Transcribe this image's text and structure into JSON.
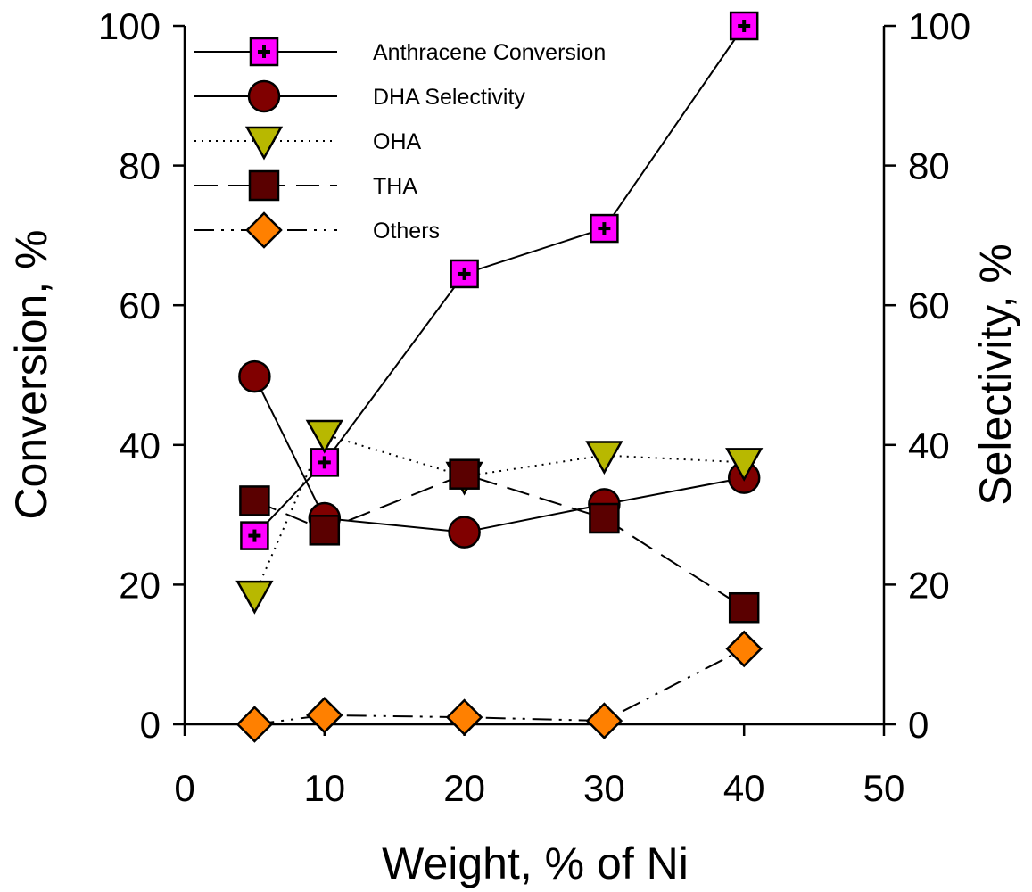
{
  "chart_data": {
    "type": "line",
    "xlabel": "Weight, % of Ni",
    "ylabel_left": "Conversion, %",
    "ylabel_right": "Selectivity, %",
    "xlim": [
      0,
      50
    ],
    "ylim_left": [
      0,
      100
    ],
    "ylim_right": [
      0,
      100
    ],
    "x_ticks": [
      0,
      10,
      20,
      30,
      40,
      50
    ],
    "y_ticks": [
      0,
      20,
      40,
      60,
      80,
      100
    ],
    "grid": false,
    "legend_position": "top-left",
    "series": [
      {
        "name": "Anthracene Conversion",
        "axis": "left",
        "marker": "square-plus",
        "color": "#ff00ff",
        "line": "solid",
        "points": [
          [
            5,
            27
          ],
          [
            10,
            37.5
          ],
          [
            20,
            64.5
          ],
          [
            30,
            71
          ],
          [
            40,
            100
          ]
        ]
      },
      {
        "name": "DHA Selectivity",
        "axis": "right",
        "marker": "circle",
        "color": "#800000",
        "line": "solid",
        "points": [
          [
            5,
            49.8
          ],
          [
            10,
            29.5
          ],
          [
            20,
            27.5
          ],
          [
            30,
            31.5
          ],
          [
            40,
            35.3
          ]
        ]
      },
      {
        "name": "OHA",
        "axis": "right",
        "marker": "triangle-down",
        "color": "#b8b800",
        "line": "dotted",
        "points": [
          [
            5,
            18.5
          ],
          [
            10,
            41.5
          ],
          [
            20,
            35.5
          ],
          [
            30,
            38.5
          ],
          [
            40,
            37.5
          ]
        ]
      },
      {
        "name": "THA",
        "axis": "right",
        "marker": "square",
        "color": "#5a0000",
        "line": "dashed",
        "points": [
          [
            5,
            32
          ],
          [
            10,
            27.8
          ],
          [
            20,
            35.8
          ],
          [
            30,
            29.5
          ],
          [
            40,
            16.7
          ]
        ]
      },
      {
        "name": "Others",
        "axis": "right",
        "marker": "diamond",
        "color": "#ff8000",
        "line": "dashdotdot",
        "points": [
          [
            5,
            0
          ],
          [
            10,
            1.3
          ],
          [
            20,
            1.0
          ],
          [
            30,
            0.5
          ],
          [
            40,
            10.8
          ]
        ]
      }
    ]
  }
}
